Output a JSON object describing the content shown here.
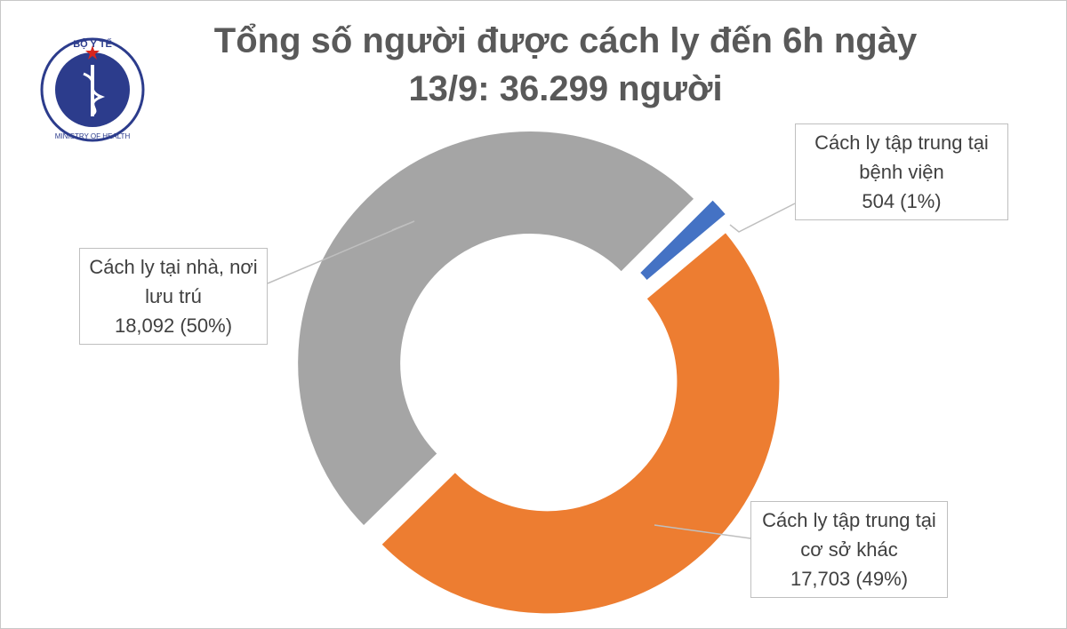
{
  "logo": {
    "top": "BỘ Y TẾ",
    "bottom": "MINISTRY OF HEALTH"
  },
  "chart_data": {
    "type": "donut",
    "title": "Tổng số người được cách ly đến 6h ngày 13/9: 36.299 người",
    "categories": [
      "Cách ly tập trung tại bệnh viện",
      "Cách ly tập trung tại cơ sở khác",
      "Cách ly tại nhà, nơi lưu trú"
    ],
    "values": [
      504,
      17703,
      18092
    ],
    "value_labels": [
      "504 (1%)",
      "17,703 (49%)",
      "18,092 (50%)"
    ],
    "colors": [
      "#4472c4",
      "#ed7d31",
      "#a5a5a5"
    ]
  }
}
